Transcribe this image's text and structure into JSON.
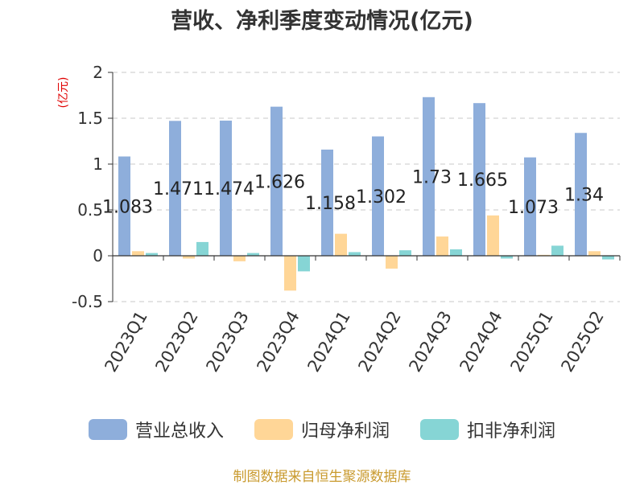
{
  "chart_data": {
    "type": "bar",
    "title": "营收、净利季度变动情况(亿元)",
    "ylabel": "(亿元)",
    "ylim": [
      -0.5,
      2
    ],
    "yticks": [
      "2",
      "1.5",
      "1",
      "0.5",
      "0",
      "-0.5"
    ],
    "categories": [
      "2023Q1",
      "2023Q2",
      "2023Q3",
      "2023Q4",
      "2024Q1",
      "2024Q2",
      "2024Q3",
      "2024Q4",
      "2025Q1",
      "2025Q2"
    ],
    "series": [
      {
        "name": "营业总收入",
        "color": "#8eaedb",
        "values": [
          1.083,
          1.471,
          1.474,
          1.626,
          1.158,
          1.302,
          1.73,
          1.665,
          1.073,
          1.34
        ],
        "data_labels": [
          "1.083",
          "1.471",
          "1.474",
          "1.626",
          "1.158",
          "1.302",
          "1.73",
          "1.665",
          "1.073",
          "1.34"
        ]
      },
      {
        "name": "归母净利润",
        "color": "#ffd697",
        "values": [
          0.05,
          -0.03,
          -0.06,
          -0.38,
          0.24,
          -0.14,
          0.21,
          0.44,
          0.01,
          0.05
        ]
      },
      {
        "name": "扣非净利润",
        "color": "#86d5d5",
        "values": [
          0.03,
          0.15,
          0.03,
          -0.17,
          0.04,
          0.06,
          0.07,
          -0.03,
          0.11,
          -0.04
        ]
      }
    ],
    "grid": true,
    "legend_position": "bottom"
  },
  "footer": "制图数据来自恒生聚源数据库"
}
